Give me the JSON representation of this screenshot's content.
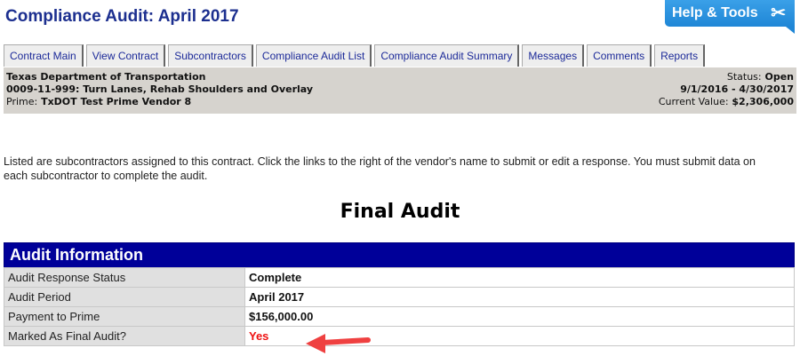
{
  "title": "Compliance Audit: April 2017",
  "help_tools": {
    "label": "Help & Tools",
    "icon": "tools-icon"
  },
  "tabs": [
    "Contract Main",
    "View Contract",
    "Subcontractors",
    "Compliance Audit List",
    "Compliance Audit Summary",
    "Messages",
    "Comments",
    "Reports"
  ],
  "header": {
    "agency": "Texas Department of Transportation",
    "contract": "0009-11-999: Turn Lanes, Rehab Shoulders and Overlay",
    "prime_label": "Prime:",
    "prime": "TxDOT Test Prime Vendor 8",
    "status_label": "Status:",
    "status": "Open",
    "dates": "9/1/2016 - 4/30/2017",
    "value_label": "Current Value:",
    "value": "$2,306,000"
  },
  "intro": "Listed are subcontractors assigned to this contract. Click the links to the right of the vendor's name to submit or edit a response. You must submit data on each subcontractor to complete the audit.",
  "heading": "Final Audit",
  "audit": {
    "title": "Audit Information",
    "rows": [
      {
        "label": "Audit Response Status",
        "value": "Complete"
      },
      {
        "label": "Audit Period",
        "value": "April 2017"
      },
      {
        "label": "Payment to Prime",
        "value": "$156,000.00"
      },
      {
        "label": "Marked As Final Audit?",
        "value": "Yes"
      }
    ]
  },
  "colors": {
    "navy": "#000099",
    "accent": "#1f86d6",
    "highlight": "#ee1111"
  }
}
